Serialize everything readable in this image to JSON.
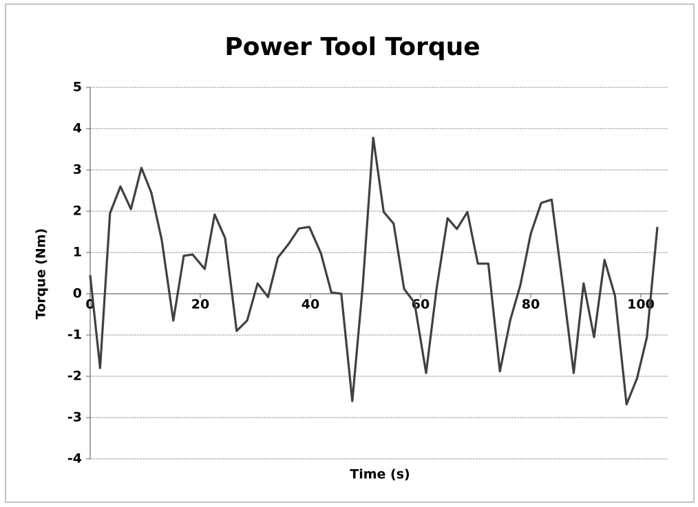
{
  "chart_data": {
    "type": "line",
    "title": "Power Tool Torque",
    "xlabel": "Time (s)",
    "ylabel": "Torque (Nm)",
    "x": [
      0,
      1.8,
      3.6,
      5.5,
      7.4,
      9.3,
      11.1,
      13,
      15.1,
      17,
      18.6,
      20.8,
      22.6,
      24.5,
      26.6,
      28.5,
      30.4,
      32.3,
      34.1,
      36,
      37.9,
      39.8,
      41.9,
      43.8,
      45.6,
      47.6,
      49.5,
      51.4,
      53.3,
      55.1,
      57,
      58.9,
      61,
      62.9,
      64.9,
      66.6,
      68.5,
      70.4,
      72.3,
      74.4,
      76.3,
      78.1,
      80,
      81.9,
      83.8,
      85.9,
      87.8,
      89.6,
      91.5,
      93.4,
      95.3,
      97.4,
      99.3,
      101.1,
      103
    ],
    "series": [
      {
        "name": "Torque",
        "color": "#404040",
        "values": [
          0.45,
          -1.8,
          1.95,
          2.6,
          2.05,
          3.05,
          2.45,
          1.3,
          -0.65,
          0.92,
          0.95,
          0.6,
          1.92,
          1.35,
          -0.9,
          -0.65,
          0.25,
          -0.08,
          0.88,
          1.2,
          1.58,
          1.62,
          0.98,
          0.03,
          0,
          -2.6,
          0.2,
          3.78,
          1.98,
          1.7,
          0.12,
          -0.22,
          -1.92,
          0.12,
          1.83,
          1.57,
          1.98,
          0.73,
          0.73,
          -1.88,
          -0.63,
          0.2,
          1.45,
          2.2,
          2.28,
          0.12,
          -1.92,
          0.25,
          -1.05,
          0.82,
          -0.05,
          -2.68,
          -2.05,
          -1.05,
          1.62
        ]
      }
    ],
    "xlim": [
      0,
      105
    ],
    "xticks": [
      0,
      20,
      40,
      60,
      80,
      100
    ],
    "ylim": [
      -4,
      5
    ],
    "yticks": [
      -4,
      -3,
      -2,
      -1,
      0,
      1,
      2,
      3,
      4,
      5
    ],
    "grid": true
  }
}
